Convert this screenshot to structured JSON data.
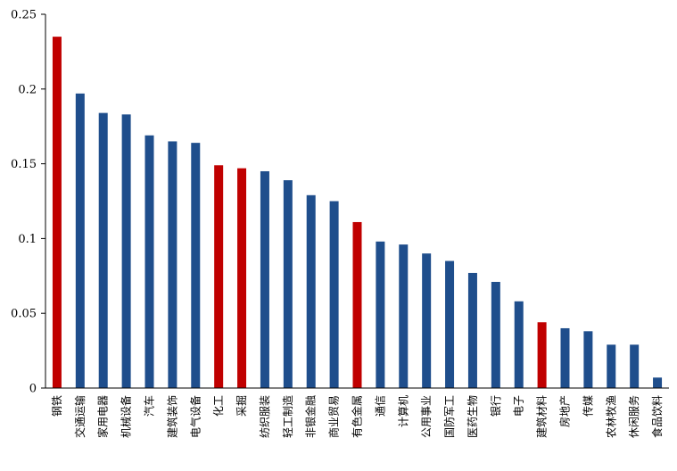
{
  "chart_data": {
    "type": "bar",
    "title": "",
    "xlabel": "",
    "ylabel": "",
    "ylim": [
      0,
      0.25
    ],
    "yticks": [
      "0",
      "0.05",
      "0.1",
      "0.15",
      "0.2",
      "0.25"
    ],
    "ytick_values": [
      0,
      0.05,
      0.1,
      0.15,
      0.2,
      0.25
    ],
    "grid": false,
    "legend": "none",
    "colors": {
      "blue": "#1F4E8C",
      "red": "#C00000"
    },
    "categories": [
      "钢铁",
      "交通运输",
      "家用电器",
      "机械设备",
      "汽车",
      "建筑装饰",
      "电气设备",
      "化工",
      "采掘",
      "纺织服装",
      "轻工制造",
      "非银金融",
      "商业贸易",
      "有色金属",
      "通信",
      "计算机",
      "公用事业",
      "国防军工",
      "医药生物",
      "银行",
      "电子",
      "建筑材料",
      "房地产",
      "传媒",
      "农林牧渔",
      "休闲服务",
      "食品饮料"
    ],
    "values": [
      0.235,
      0.197,
      0.184,
      0.183,
      0.169,
      0.165,
      0.164,
      0.149,
      0.147,
      0.145,
      0.139,
      0.129,
      0.125,
      0.111,
      0.098,
      0.096,
      0.09,
      0.085,
      0.077,
      0.071,
      0.058,
      0.044,
      0.04,
      0.038,
      0.029,
      0.029,
      0.007
    ],
    "highlight": [
      "钢铁",
      "化工",
      "采掘",
      "有色金属",
      "建筑材料"
    ]
  }
}
